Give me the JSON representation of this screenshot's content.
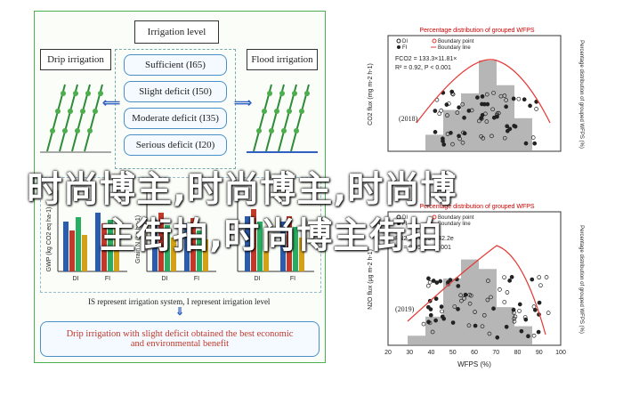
{
  "left_panel": {
    "irrigation_level_title": "Irrigation level",
    "drip_irrigation": "Drip irrigation",
    "flood_irrigation": "Flood irrigation",
    "levels": [
      "Sufficient (I65)",
      "Slight deficit (I50)",
      "Moderate deficit (I35)",
      "Serious deficit (I20)"
    ],
    "note": "IS represent irrigation system, I represent irrigation level",
    "conclusion_line1": "Drip irrigation with slight deficit obtained the best economic",
    "conclusion_line2": "and environmental benefit",
    "gwp_label": "GWP (kg CO2 eq ha-1)",
    "grain_label": "Grain N (kg ha-1)",
    "yield_label": "Yield",
    "group_labels": [
      "DI",
      "FI",
      "DI",
      "FI",
      "DI",
      "FI"
    ]
  },
  "chart_2018": {
    "title": "Percentage distribution of grouped WFPS",
    "legend": [
      "DI",
      "FI",
      "Boundary point",
      "Boundary line"
    ],
    "eq": "FCO2 = 133.3×11.81×",
    "r2": "R² = 0.92, P < 0.001",
    "year": "(2018)",
    "ylabel_left": "CO2 flux (mg m-2 h-1)",
    "ylabel_right": "Percentage distribution of grouped WFPS (%)"
  },
  "chart_2019": {
    "title": "Percentage distribution of grouped WFPS",
    "legend": [
      "DI",
      "FI",
      "Boundary point",
      "Boundary line"
    ],
    "eq": "FN2O = 48.3×142.2e",
    "r2": "R² = 0.95, P < 0.001",
    "year": "(2019)",
    "xlabel": "WFPS (%)",
    "ylabel_left": "N2O flux (μg m-2 h-1)",
    "ylabel_right": "Percentage distribution of grouped WFPS (%)"
  },
  "overlay": {
    "line1": "时尚博主,时尚博主,时尚博",
    "line2": "主街拍,时尚博主街拍"
  },
  "chart_data": [
    {
      "type": "scatter",
      "title": "Percentage distribution of grouped WFPS",
      "x_bins": [
        30,
        40,
        50,
        60,
        70,
        80
      ],
      "bar_percent": [
        10,
        25,
        35,
        55,
        40,
        20
      ],
      "boundary_points": [
        [
          45,
          240
        ],
        [
          55,
          330
        ],
        [
          62,
          440
        ],
        [
          68,
          470
        ],
        [
          75,
          400
        ],
        [
          85,
          320
        ]
      ],
      "ylim_left": [
        0,
        700
      ],
      "ylim_right": [
        0,
        70
      ]
    },
    {
      "type": "scatter",
      "title": "Percentage distribution of grouped WFPS",
      "xlabel": "WFPS (%)",
      "x_ticks": [
        20,
        30,
        40,
        50,
        60,
        70,
        80,
        90,
        100
      ],
      "bar_percent": [
        5,
        15,
        35,
        45,
        40,
        20,
        10
      ],
      "ylim_left": [
        0,
        70
      ],
      "ylim_right": [
        0,
        70
      ]
    }
  ]
}
